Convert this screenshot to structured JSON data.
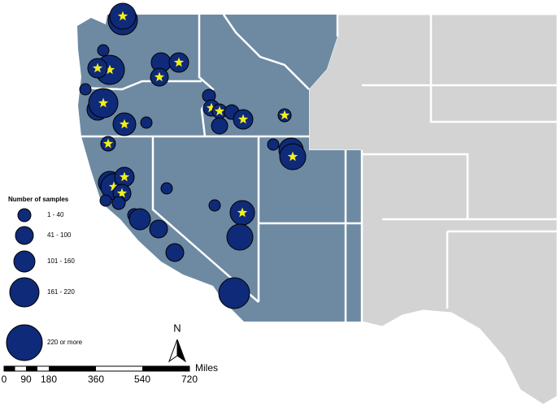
{
  "legend": {
    "title": "Number of samples",
    "entries": [
      "1 - 40",
      "41 - 100",
      "101 - 160",
      "161 - 220",
      "220 or more"
    ]
  },
  "north_arrow": "N",
  "scale_bar": {
    "unit": "Miles",
    "labels": [
      "0",
      "90",
      "180",
      "360",
      "540",
      "720"
    ]
  }
}
